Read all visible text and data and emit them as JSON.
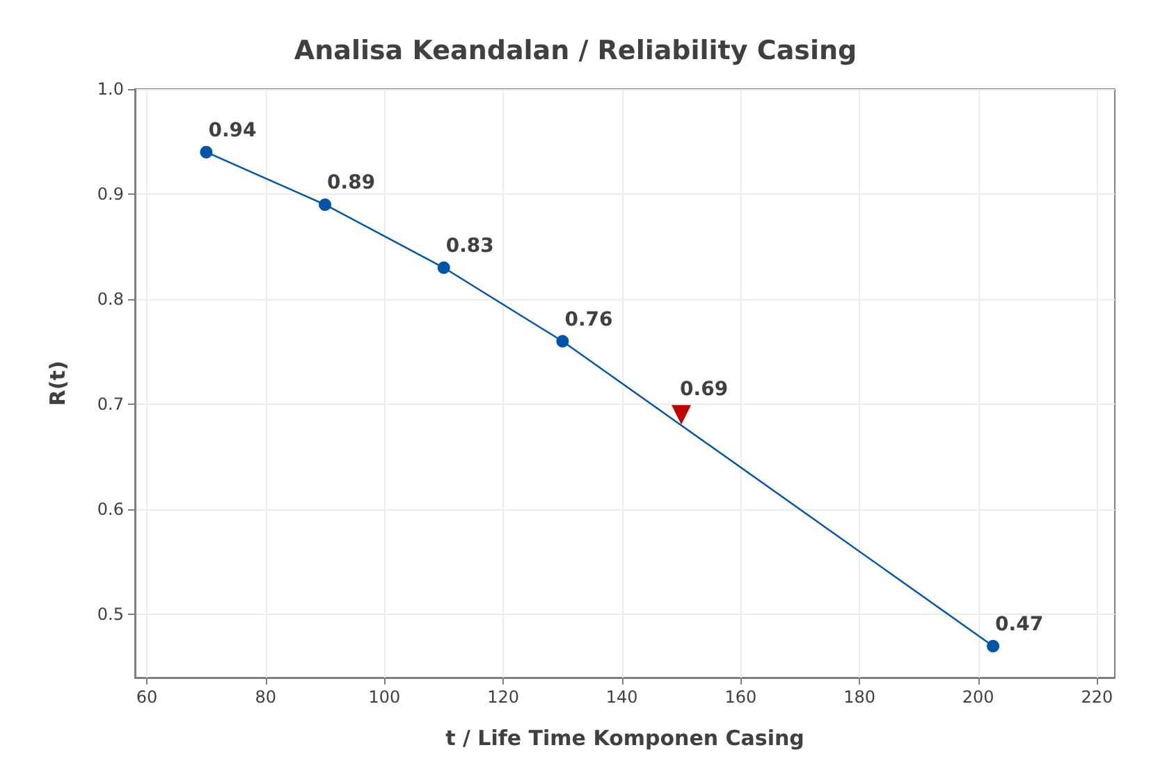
{
  "chart_data": {
    "type": "line",
    "title": "Analisa Keandalan / Reliability Casing",
    "xlabel": "t / Life Time Komponen Casing",
    "ylabel": "R(t)",
    "series": [
      {
        "color": "#0054a6",
        "x": [
          70,
          90,
          110,
          130,
          202.5
        ],
        "values": [
          0.94,
          0.89,
          0.83,
          0.76,
          0.47
        ],
        "marker": "circle"
      },
      {
        "type": "scatter",
        "color": "#c00000",
        "x": [
          150
        ],
        "values": [
          0.69
        ],
        "marker": "triangle"
      }
    ],
    "xlim": [
      58,
      223
    ],
    "xticks": [
      60,
      80,
      100,
      120,
      140,
      160,
      180,
      200,
      220
    ],
    "ylim": [
      0.44,
      1.0
    ],
    "yticks": [
      {
        "value": 0.5,
        "label": "0.5"
      },
      {
        "value": 0.6,
        "label": "0.6"
      },
      {
        "value": 0.7,
        "label": "0.7"
      },
      {
        "value": 0.8,
        "label": "0.8"
      },
      {
        "value": 0.9,
        "label": "0.9"
      },
      {
        "value": 1.0,
        "label": "1.0"
      }
    ],
    "grid": true,
    "data_labels": true,
    "line_style": "solid"
  }
}
